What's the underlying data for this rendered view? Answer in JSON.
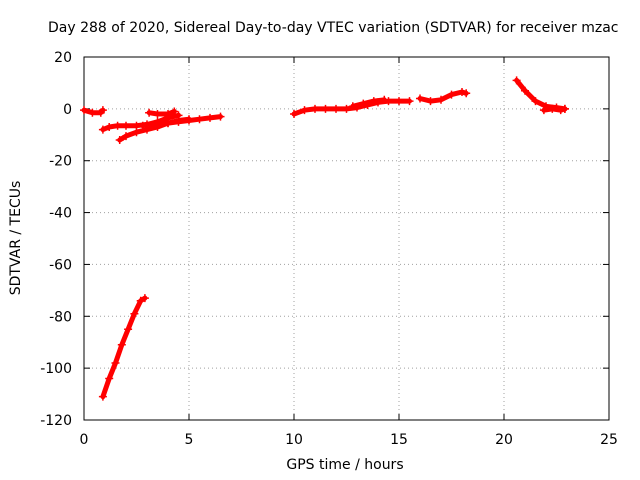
{
  "chart_data": {
    "type": "scatter",
    "title": "Day 288 of 2020, Sidereal Day-to-day VTEC variation (SDTVAR) for receiver mzac",
    "xlabel": "GPS time / hours",
    "ylabel": "SDTVAR / TECUs",
    "xlim": [
      0,
      25
    ],
    "ylim": [
      -120,
      20
    ],
    "xticks": [
      0,
      5,
      10,
      15,
      20,
      25
    ],
    "yticks": [
      -120,
      -100,
      -80,
      -60,
      -40,
      -20,
      0,
      20
    ],
    "grid": true,
    "marker_color": "#ff0000",
    "series": [
      {
        "x": [
          0.0,
          0.4,
          0.8,
          0.9
        ],
        "y": [
          -0.5,
          -1.5,
          -1.5,
          -0.5
        ]
      },
      {
        "x": [
          0.9,
          1.2,
          1.6,
          2.0,
          2.5,
          3.0,
          3.5,
          4.0,
          4.5,
          5.0,
          5.5,
          6.0,
          6.5
        ],
        "y": [
          -8.0,
          -7.0,
          -6.5,
          -6.5,
          -6.5,
          -6.0,
          -6.0,
          -5.5,
          -5.0,
          -4.5,
          -4.0,
          -3.5,
          -3.0
        ]
      },
      {
        "x": [
          1.7,
          2.0,
          2.5,
          3.0,
          3.5,
          4.0,
          4.5,
          5.0
        ],
        "y": [
          -12.0,
          -10.5,
          -9.0,
          -8.0,
          -7.0,
          -5.5,
          -4.5,
          -4.0
        ]
      },
      {
        "x": [
          3.1,
          3.5,
          4.0,
          4.3
        ],
        "y": [
          -1.5,
          -2.0,
          -2.0,
          -1.0
        ]
      },
      {
        "x": [
          2.8,
          3.5,
          4.0,
          4.5
        ],
        "y": [
          -6.5,
          -5.0,
          -3.5,
          -2.5
        ]
      },
      {
        "x": [
          0.9,
          1.2,
          1.5,
          1.8,
          2.1,
          2.4,
          2.7,
          2.9
        ],
        "y": [
          -111.0,
          -104.0,
          -98.0,
          -91.0,
          -85.0,
          -79.0,
          -74.0,
          -73.0
        ]
      },
      {
        "x": [
          10.0,
          10.5,
          11.0,
          11.5,
          12.0,
          12.5,
          13.0,
          13.5,
          14.0,
          14.5,
          15.0,
          15.5
        ],
        "y": [
          -2.0,
          -0.5,
          0.0,
          0.0,
          0.0,
          0.0,
          0.5,
          1.5,
          2.5,
          3.0,
          3.0,
          3.0
        ]
      },
      {
        "x": [
          12.8,
          13.3,
          13.8,
          14.3
        ],
        "y": [
          1.0,
          2.0,
          3.0,
          3.5
        ]
      },
      {
        "x": [
          16.0,
          16.5,
          17.0,
          17.5,
          18.0,
          18.2
        ],
        "y": [
          4.0,
          3.0,
          3.5,
          5.5,
          6.5,
          6.0
        ]
      },
      {
        "x": [
          20.6,
          21.0,
          21.5,
          22.0,
          22.5,
          22.9
        ],
        "y": [
          11.0,
          7.0,
          3.0,
          1.0,
          0.5,
          0.0
        ]
      },
      {
        "x": [
          21.9,
          22.3,
          22.7,
          22.9
        ],
        "y": [
          -0.5,
          0.0,
          -0.5,
          0.0
        ]
      }
    ]
  }
}
